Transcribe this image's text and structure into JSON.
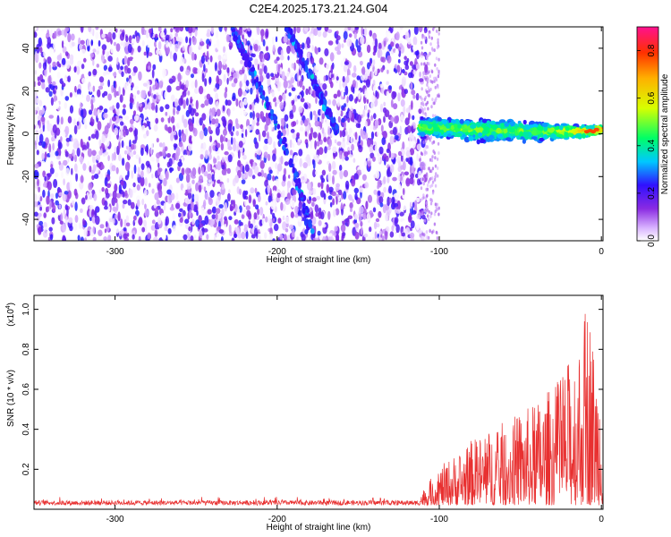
{
  "title": "C2E4.2025.173.21.24.G04",
  "chart_data": [
    {
      "type": "heatmap",
      "xlabel": "Height of straight line (km)",
      "ylabel": "Frequency (Hz)",
      "xlim": [
        -350,
        1
      ],
      "ylim": [
        -50,
        50
      ],
      "x_ticks": [
        -300,
        -200,
        -100,
        0
      ],
      "y_ticks": [
        -40,
        -20,
        0,
        20,
        40
      ],
      "x_tick_labels": [
        "-300",
        "-200",
        "-100",
        "0"
      ],
      "y_tick_labels": [
        "-40",
        "-20",
        "0",
        "20",
        "40"
      ],
      "noise_region_x": [
        -350,
        -112
      ],
      "diagonal_tracks": [
        {
          "x": [
            -228,
            -210,
            -198,
            -188,
            -178
          ],
          "y": [
            50,
            20,
            0,
            -20,
            -50
          ]
        },
        {
          "x": [
            -194,
            -162
          ],
          "y": [
            50,
            0
          ]
        }
      ],
      "signal_band": {
        "x": [
          -112,
          -80,
          -40,
          -10,
          0
        ],
        "y_center": [
          3,
          2,
          1,
          1,
          2
        ],
        "half_width": [
          5,
          6,
          5,
          3,
          2
        ],
        "peak_amplitude": 0.9
      },
      "colorbar": {
        "label": "Normalized spectral amplitude",
        "range": [
          0,
          0.9
        ],
        "ticks": [
          0.0,
          0.2,
          0.4,
          0.6,
          0.8
        ],
        "tick_labels": [
          "0.0",
          "0.2",
          "0.4",
          "0.6",
          "0.8"
        ]
      },
      "grid": false
    },
    {
      "type": "line",
      "xlabel": "Height of straight line (km)",
      "ylabel": "SNR (10 * v/v)",
      "y_multiplier": "(x10",
      "y_multiplier_exp": "4",
      "y_multiplier_close": ")",
      "xlim": [
        -350,
        1
      ],
      "ylim": [
        0,
        1.07
      ],
      "x_ticks": [
        -300,
        -200,
        -100,
        0
      ],
      "y_ticks": [
        0.2,
        0.4,
        0.6,
        0.8,
        1.0
      ],
      "x_tick_labels": [
        "-300",
        "-200",
        "-100",
        "0"
      ],
      "y_tick_labels": [
        "0.2",
        "0.4",
        "0.6",
        "0.8",
        "1.0"
      ],
      "series": [
        {
          "color": "#e83030",
          "baseline_x": [
            -350,
            -112
          ],
          "baseline_level": [
            0.02,
            0.05
          ],
          "envelope_x": [
            -112,
            -100,
            -80,
            -60,
            -40,
            -25,
            -15,
            -8,
            -4,
            0
          ],
          "envelope_y": [
            0.06,
            0.19,
            0.33,
            0.42,
            0.52,
            0.65,
            0.82,
            1.07,
            0.75,
            0.62
          ]
        }
      ],
      "grid": false
    }
  ]
}
